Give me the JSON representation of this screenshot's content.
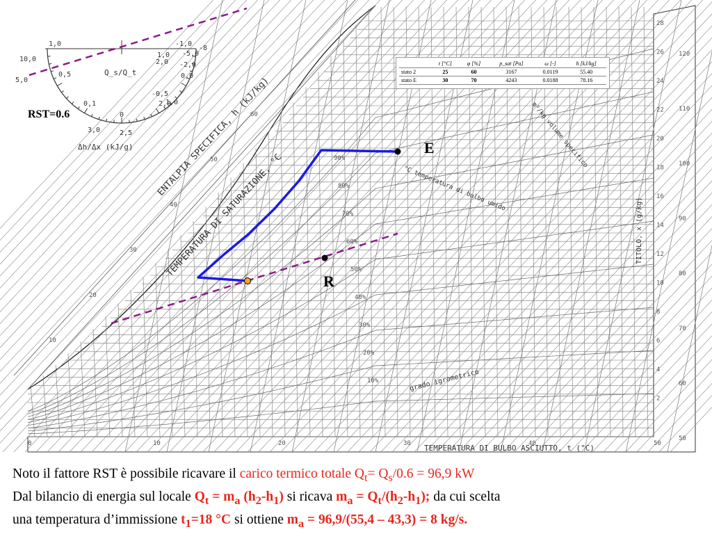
{
  "rst_label": "RST=0.6",
  "point_e_label": "E",
  "point_r_label": "R",
  "chart_text": {
    "entalpia": "ENTALPIA SPECIFICA, h (kJ/kg)",
    "saturazione": "TEMPERATURA DI SATURAZIONE, °C",
    "bulbo_umido": "°C temperatura di bulbo umido",
    "volume": "m³/kg volume specifico",
    "titolo": "TITOLO, x (g/kg)",
    "grado": "grado igrometrico",
    "bulbo_asciutto": "TEMPERATURA DI BULBO ASCIUTTO, t (°C)",
    "protractor_qs": "Q_s/Q_t",
    "protractor_dh": "Δh/Δx (kJ/g)"
  },
  "protractor_scale": [
    "1,0",
    "10,0",
    "0,5",
    "5,0",
    "0,1",
    "3,0",
    "0",
    "2,5",
    "-1,0",
    "-5,0",
    "-2,0",
    "0,0",
    "-0,5",
    "2,0",
    "1,0",
    "-8",
    "2,0",
    "1,0"
  ],
  "bottom_ticks": [
    "0",
    "10",
    "20",
    "30",
    "40",
    "50"
  ],
  "right_ticks": [
    "28",
    "26",
    "24",
    "22",
    "20",
    "18",
    "16",
    "14",
    "12",
    "10",
    "8",
    "6",
    "4",
    "2"
  ],
  "enthalpy_ticks": [
    "120",
    "110",
    "100",
    "90",
    "80",
    "70",
    "60",
    "50"
  ],
  "left_ticks": [
    "10",
    "20",
    "30",
    "40",
    "50",
    "60"
  ],
  "rh_labels": [
    "90%",
    "80%",
    "70%",
    "60%",
    "50%",
    "40%",
    "30%",
    "20%",
    "10%"
  ],
  "table": {
    "headers": [
      "",
      "t [°C]",
      "φ [%]",
      "p_sat [Pa]",
      "ω [-]",
      "h [kJ/kg]"
    ],
    "rows": [
      [
        "stato 2",
        "25",
        "60",
        "3167",
        "0.0119",
        "55.40"
      ],
      [
        "stato E",
        "30",
        "70",
        "4243",
        "0.0188",
        "78.16"
      ]
    ]
  },
  "text": {
    "l1a": "Noto il fattore RST è possibile ricavare il ",
    "l1b": "carico termico totale Q",
    "l1b_sub": "t",
    "l1c": "= Q",
    "l1c_sub": "s",
    "l1d": "/0.6 = 96,9 kW",
    "l2a": "Dal bilancio di energia sul locale ",
    "l2b": "Q",
    "l2b_sub": "t",
    "l2c": " = m",
    "l2c_sub": "a",
    "l2d": " (h",
    "l2d_sub": "2",
    "l2e": "-h",
    "l2e_sub": "1",
    "l2f": ")",
    "l2g": " si ricava ",
    "l2h": "m",
    "l2h_sub": "a",
    "l2i": " = Q",
    "l2i_sub": "t",
    "l2j": "/(h",
    "l2j_sub": "2",
    "l2k": "-h",
    "l2k_sub": "1",
    "l2l": ");",
    "l2m": " da cui scelta",
    "l3a": "una temperatura d’immissione ",
    "l3b": "t",
    "l3b_sub": "1",
    "l3c": "=18 °C",
    "l3d": " si ottiene ",
    "l3e": "m",
    "l3e_sub": "a",
    "l3f": " = 96,9/(55,4 – 43,3) = 8 kg/s."
  },
  "colors": {
    "process_line": "#1a1ae6",
    "rst_line": "#8b1a8b",
    "text_red": "#e8261c",
    "orange_point": "#f5a623"
  }
}
